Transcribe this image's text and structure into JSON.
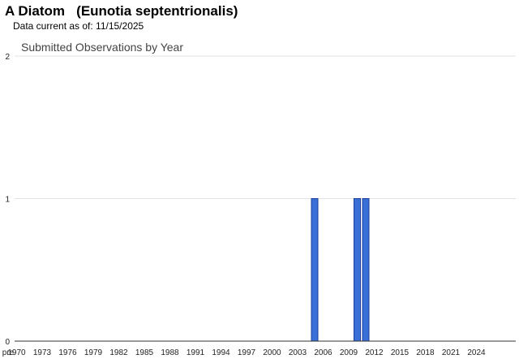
{
  "header": {
    "title": "A Diatom   (Eunotia septentrionalis)",
    "subtitle": "Data current as of: 11/15/2025"
  },
  "chart_data": {
    "type": "bar",
    "title": "Submitted Observations by Year",
    "xlabel": "",
    "ylabel": "",
    "categories": [
      "pre",
      "1970",
      "1971",
      "1972",
      "1973",
      "1974",
      "1975",
      "1976",
      "1977",
      "1978",
      "1979",
      "1980",
      "1981",
      "1982",
      "1983",
      "1984",
      "1985",
      "1986",
      "1987",
      "1988",
      "1989",
      "1990",
      "1991",
      "1992",
      "1993",
      "1994",
      "1995",
      "1996",
      "1997",
      "1998",
      "1999",
      "2000",
      "2001",
      "2002",
      "2003",
      "2004",
      "2005",
      "2006",
      "2007",
      "2008",
      "2009",
      "2010",
      "2011",
      "2012",
      "2013",
      "2014",
      "2015",
      "2016",
      "2017",
      "2018",
      "2019",
      "2020",
      "2021",
      "2022",
      "2023",
      "2024",
      "2025"
    ],
    "x_tick_labels": [
      "pre",
      "1970",
      "1973",
      "1976",
      "1979",
      "1982",
      "1985",
      "1988",
      "1991",
      "1994",
      "1997",
      "2000",
      "2003",
      "2006",
      "2009",
      "2012",
      "2015",
      "2018",
      "2021",
      "2024"
    ],
    "values": [
      0,
      0,
      0,
      0,
      0,
      0,
      0,
      0,
      0,
      0,
      0,
      0,
      0,
      0,
      0,
      0,
      0,
      0,
      0,
      0,
      0,
      0,
      0,
      0,
      0,
      0,
      0,
      0,
      0,
      0,
      0,
      0,
      0,
      0,
      0,
      0,
      1,
      0,
      0,
      0,
      0,
      1,
      1,
      0,
      0,
      0,
      0,
      0,
      0,
      0,
      0,
      0,
      0,
      0,
      0,
      0,
      0
    ],
    "ylim": [
      0,
      2
    ],
    "y_ticks": [
      0,
      1,
      2
    ],
    "grid": true,
    "bar_color": "#3a6fd8",
    "bar_edge_color": "#1c3f9e"
  }
}
